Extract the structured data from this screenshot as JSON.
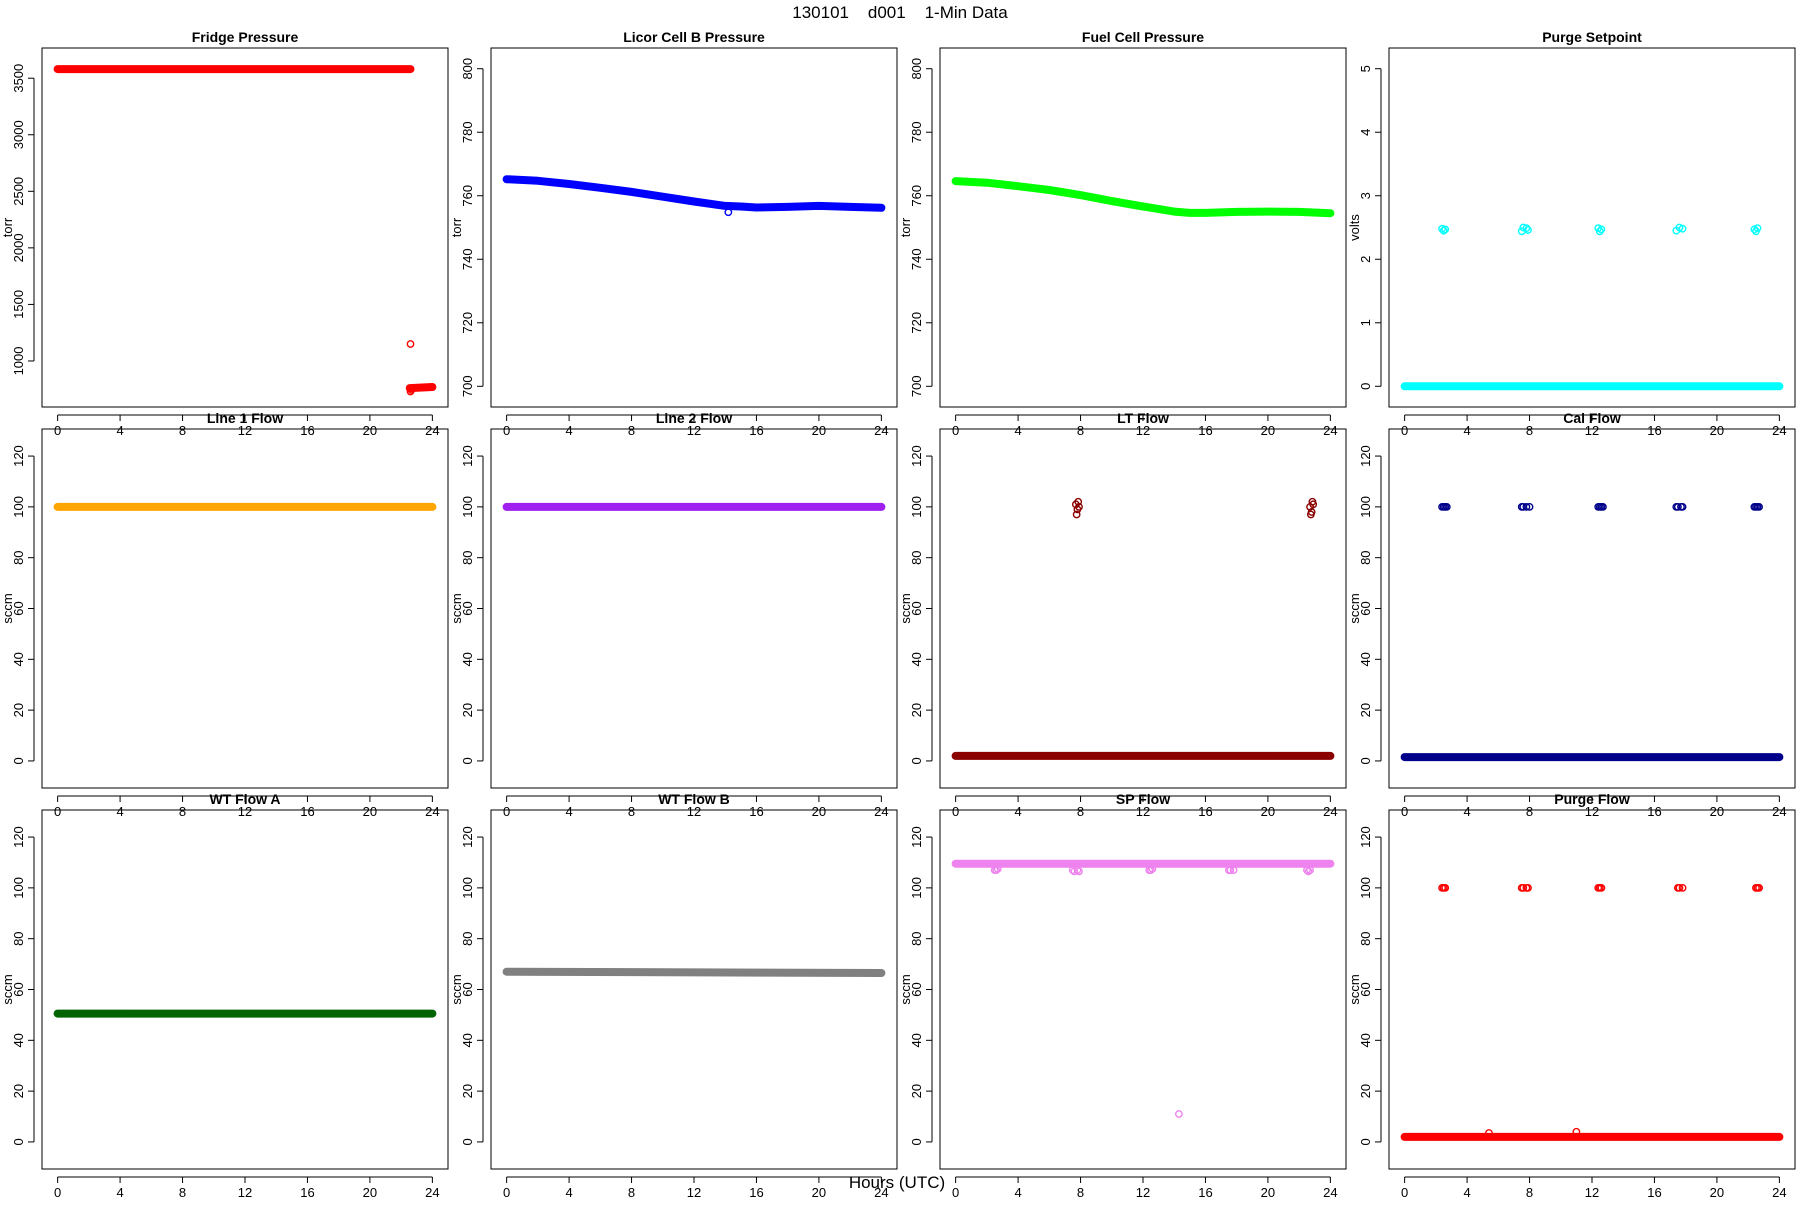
{
  "figure": {
    "title": "130101    d001    1-Min Data",
    "xlabel": "Hours (UTC)"
  },
  "chart_data": [
    {
      "type": "scatter",
      "title": "Fridge Pressure",
      "ylabel": "torr",
      "xlim": [
        0,
        24
      ],
      "xticks": [
        0,
        4,
        8,
        12,
        16,
        20,
        24
      ],
      "ylim": [
        720,
        3640
      ],
      "yticks": [
        1000,
        1500,
        2000,
        2500,
        3000,
        3500
      ],
      "color": "#ff0000",
      "series": [
        {
          "x": [
            0,
            22.6
          ],
          "y": [
            3580,
            3580
          ],
          "kind": "band"
        },
        {
          "x": [
            22.55,
            24
          ],
          "y": [
            760,
            770
          ],
          "kind": "band"
        },
        {
          "x": [
            22.6
          ],
          "y": [
            1150
          ],
          "kind": "points"
        },
        {
          "x": [
            22.6,
            22.65
          ],
          "y": [
            730,
            745
          ],
          "kind": "points"
        }
      ]
    },
    {
      "type": "scatter",
      "title": "Licor Cell B Pressure",
      "ylabel": "torr",
      "xlim": [
        0,
        24
      ],
      "xticks": [
        0,
        4,
        8,
        12,
        16,
        20,
        24
      ],
      "ylim": [
        698,
        802
      ],
      "yticks": [
        700,
        720,
        740,
        760,
        780,
        800
      ],
      "color": "#0000ff",
      "series": [
        {
          "x": [
            0,
            2,
            4,
            6,
            8,
            10,
            12,
            14,
            15,
            16,
            18,
            20,
            22,
            24
          ],
          "y": [
            765.2,
            764.7,
            763.7,
            762.5,
            761.2,
            759.7,
            758.2,
            756.8,
            756.6,
            756.3,
            756.5,
            756.8,
            756.5,
            756.2
          ],
          "kind": "band"
        },
        {
          "x": [
            14.2
          ],
          "y": [
            754.8
          ],
          "kind": "points"
        }
      ]
    },
    {
      "type": "scatter",
      "title": "Fuel Cell Pressure",
      "ylabel": "torr",
      "xlim": [
        0,
        24
      ],
      "xticks": [
        0,
        4,
        8,
        12,
        16,
        20,
        24
      ],
      "ylim": [
        698,
        802
      ],
      "yticks": [
        700,
        720,
        740,
        760,
        780,
        800
      ],
      "color": "#00ff00",
      "series": [
        {
          "x": [
            0,
            2,
            4,
            6,
            8,
            10,
            12,
            14,
            15,
            16,
            18,
            20,
            22,
            24
          ],
          "y": [
            764.6,
            764.1,
            763.0,
            761.8,
            760.2,
            758.3,
            756.6,
            755.0,
            754.6,
            754.6,
            754.9,
            755.0,
            754.9,
            754.5
          ],
          "kind": "band"
        }
      ]
    },
    {
      "type": "scatter",
      "title": "Purge Setpoint",
      "ylabel": "volts",
      "xlim": [
        0,
        24
      ],
      "xticks": [
        0,
        4,
        8,
        12,
        16,
        20,
        24
      ],
      "ylim": [
        -0.1,
        5.1
      ],
      "yticks": [
        0,
        1,
        2,
        3,
        4,
        5
      ],
      "color": "#00ffff",
      "series": [
        {
          "x": [
            0,
            24
          ],
          "y": [
            0,
            0
          ],
          "kind": "band"
        },
        {
          "x": [
            2.4,
            2.5,
            2.6,
            7.5,
            7.6,
            7.8,
            7.9,
            12.4,
            12.5,
            12.6,
            17.4,
            17.6,
            17.8,
            22.4,
            22.5,
            22.6
          ],
          "y": [
            2.48,
            2.45,
            2.47,
            2.44,
            2.5,
            2.49,
            2.46,
            2.49,
            2.44,
            2.47,
            2.45,
            2.5,
            2.48,
            2.47,
            2.44,
            2.49
          ],
          "kind": "points"
        }
      ]
    },
    {
      "type": "scatter",
      "title": "Line 1 Flow",
      "ylabel": "sccm",
      "xlim": [
        0,
        24
      ],
      "xticks": [
        0,
        4,
        8,
        12,
        16,
        20,
        24
      ],
      "ylim": [
        -5,
        125
      ],
      "yticks": [
        0,
        20,
        40,
        60,
        80,
        100,
        120
      ],
      "color": "#ffa500",
      "series": [
        {
          "x": [
            0,
            24
          ],
          "y": [
            100,
            100
          ],
          "kind": "band"
        }
      ]
    },
    {
      "type": "scatter",
      "title": "Line 2 Flow",
      "ylabel": "sccm",
      "xlim": [
        0,
        24
      ],
      "xticks": [
        0,
        4,
        8,
        12,
        16,
        20,
        24
      ],
      "ylim": [
        -5,
        125
      ],
      "yticks": [
        0,
        20,
        40,
        60,
        80,
        100,
        120
      ],
      "color": "#a020f0",
      "series": [
        {
          "x": [
            0,
            24
          ],
          "y": [
            100,
            100
          ],
          "kind": "band"
        }
      ]
    },
    {
      "type": "scatter",
      "title": "LT Flow",
      "ylabel": "sccm",
      "xlim": [
        0,
        24
      ],
      "xticks": [
        0,
        4,
        8,
        12,
        16,
        20,
        24
      ],
      "ylim": [
        -5,
        125
      ],
      "yticks": [
        0,
        20,
        40,
        60,
        80,
        100,
        120
      ],
      "color": "#8b0000",
      "series": [
        {
          "x": [
            0,
            24
          ],
          "y": [
            2,
            2
          ],
          "kind": "band"
        },
        {
          "x": [
            7.7,
            7.8,
            7.9,
            7.75,
            7.85,
            22.7,
            22.8,
            22.9,
            22.75,
            22.85
          ],
          "y": [
            101,
            99,
            100,
            97,
            102,
            100,
            98,
            101,
            97,
            102
          ],
          "kind": "points"
        }
      ]
    },
    {
      "type": "scatter",
      "title": "Cal Flow",
      "ylabel": "sccm",
      "xlim": [
        0,
        24
      ],
      "xticks": [
        0,
        4,
        8,
        12,
        16,
        20,
        24
      ],
      "ylim": [
        -5,
        125
      ],
      "yticks": [
        0,
        20,
        40,
        60,
        80,
        100,
        120
      ],
      "color": "#00008b",
      "series": [
        {
          "x": [
            0,
            24
          ],
          "y": [
            1.5,
            1.5
          ],
          "kind": "band"
        },
        {
          "x": [
            2.4,
            2.5,
            2.6,
            2.7,
            7.5,
            7.6,
            7.8,
            8.0,
            12.4,
            12.5,
            12.6,
            12.7,
            17.4,
            17.5,
            17.7,
            17.8,
            22.4,
            22.5,
            22.6,
            22.7
          ],
          "y": [
            100,
            100,
            100,
            100,
            100,
            100,
            100,
            100,
            100,
            100,
            100,
            100,
            100,
            100,
            100,
            100,
            100,
            100,
            100,
            100
          ],
          "kind": "points"
        }
      ]
    },
    {
      "type": "scatter",
      "title": "WT Flow A",
      "ylabel": "sccm",
      "xlim": [
        0,
        24
      ],
      "xticks": [
        0,
        4,
        8,
        12,
        16,
        20,
        24
      ],
      "ylim": [
        -5,
        125
      ],
      "yticks": [
        0,
        20,
        40,
        60,
        80,
        100,
        120
      ],
      "color": "#006400",
      "series": [
        {
          "x": [
            0,
            24
          ],
          "y": [
            50.5,
            50.5
          ],
          "kind": "band"
        }
      ]
    },
    {
      "type": "scatter",
      "title": "WT Flow B",
      "ylabel": "sccm",
      "xlim": [
        0,
        24
      ],
      "xticks": [
        0,
        4,
        8,
        12,
        16,
        20,
        24
      ],
      "ylim": [
        -5,
        125
      ],
      "yticks": [
        0,
        20,
        40,
        60,
        80,
        100,
        120
      ],
      "color": "#808080",
      "series": [
        {
          "x": [
            0,
            24
          ],
          "y": [
            67,
            66.5
          ],
          "kind": "band"
        }
      ]
    },
    {
      "type": "scatter",
      "title": "SP Flow",
      "ylabel": "sccm",
      "xlim": [
        0,
        24
      ],
      "xticks": [
        0,
        4,
        8,
        12,
        16,
        20,
        24
      ],
      "ylim": [
        -5,
        125
      ],
      "yticks": [
        0,
        20,
        40,
        60,
        80,
        100,
        120
      ],
      "color": "#ee82ee",
      "series": [
        {
          "x": [
            0,
            24
          ],
          "y": [
            109.5,
            109.5
          ],
          "kind": "band"
        },
        {
          "x": [
            2.5,
            2.6,
            2.7,
            7.5,
            7.6,
            7.8,
            7.9,
            12.4,
            12.5,
            12.6,
            17.5,
            17.6,
            17.8,
            22.5,
            22.6,
            22.7
          ],
          "y": [
            107,
            107,
            107.5,
            107,
            106.5,
            107,
            106.5,
            107,
            107,
            107.5,
            107,
            107,
            107,
            107,
            106.5,
            107
          ],
          "kind": "points"
        },
        {
          "x": [
            14.3
          ],
          "y": [
            11
          ],
          "kind": "points"
        }
      ]
    },
    {
      "type": "scatter",
      "title": "Purge Flow",
      "ylabel": "sccm",
      "xlim": [
        0,
        24
      ],
      "xticks": [
        0,
        4,
        8,
        12,
        16,
        20,
        24
      ],
      "ylim": [
        -5,
        125
      ],
      "yticks": [
        0,
        20,
        40,
        60,
        80,
        100,
        120
      ],
      "color": "#ff0000",
      "series": [
        {
          "x": [
            0,
            24
          ],
          "y": [
            2,
            2
          ],
          "kind": "band"
        },
        {
          "x": [
            2.4,
            2.5,
            2.6,
            7.5,
            7.6,
            7.8,
            7.9,
            12.4,
            12.5,
            12.6,
            17.5,
            17.6,
            17.8,
            22.5,
            22.6,
            22.7
          ],
          "y": [
            100,
            100,
            100,
            100,
            100,
            100,
            100,
            100,
            100,
            100,
            100,
            100,
            100,
            100,
            100,
            100
          ],
          "kind": "points"
        },
        {
          "x": [
            5.4,
            11.0
          ],
          "y": [
            3.5,
            4
          ],
          "kind": "points"
        }
      ]
    }
  ]
}
